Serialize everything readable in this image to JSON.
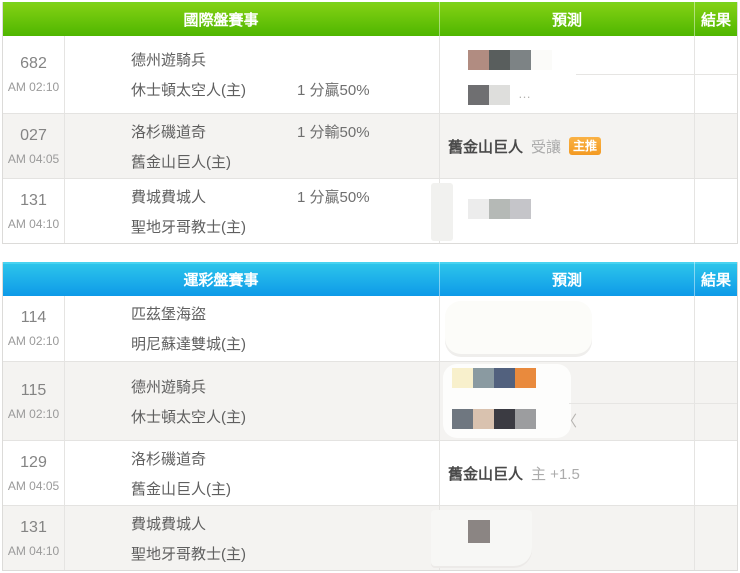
{
  "colors": {
    "green_top": "#85D215",
    "green_bottom": "#4FB600",
    "blue_top": "#2EC7EB",
    "blue_bottom": "#0E9AE8",
    "row_alt": "#F4F3F1",
    "badge_orange": "#F39A22"
  },
  "tables": [
    {
      "title": "國際盤賽事",
      "theme": "green",
      "header": {
        "event": "國際盤賽事",
        "prediction": "預測",
        "result": "結果"
      },
      "rows": [
        {
          "number": "682",
          "time": "AM 02:10",
          "away": "德州遊騎兵",
          "home": "休士頓太空人(主)",
          "odds": "1 分贏50%",
          "odds_line": "home",
          "prediction": {
            "kind": "censored",
            "mosaic": [
              [
                "#B18C81",
                "#595E5D",
                "#7D8385",
                "#FBFBF9"
              ],
              [
                "#6F6F71",
                "#DEDEDC"
              ]
            ],
            "suffix": "…"
          },
          "result": ""
        },
        {
          "number": "027",
          "time": "AM 04:05",
          "away": "洛杉磯道奇",
          "home": "舊金山巨人(主)",
          "odds": "1 分輸50%",
          "odds_line": "away",
          "prediction": {
            "kind": "pick",
            "team": "舊金山巨人",
            "note": "受讓",
            "badge": "主推"
          },
          "result": ""
        },
        {
          "number": "131",
          "time": "AM 04:10",
          "away": "費城費城人",
          "home": "聖地牙哥教士(主)",
          "odds": "1 分贏50%",
          "odds_line": "away",
          "prediction": {
            "kind": "censored",
            "mosaic": [
              [
                "#ECECEC",
                "#B5B9B6",
                "#C5C5C9"
              ]
            ]
          },
          "result": ""
        }
      ]
    },
    {
      "title": "運彩盤賽事",
      "theme": "blue",
      "header": {
        "event": "運彩盤賽事",
        "prediction": "預測",
        "result": "結果"
      },
      "rows": [
        {
          "number": "114",
          "time": "AM 02:10",
          "away": "匹茲堡海盜",
          "home": "明尼蘇達雙城(主)",
          "prediction": {
            "kind": "censored",
            "mosaic": []
          },
          "result": ""
        },
        {
          "number": "115",
          "time": "AM 02:10",
          "away": "德州遊騎兵",
          "home": "休士頓太空人(主)",
          "prediction": {
            "kind": "censored",
            "mosaic": [
              [
                "#F8F0CC",
                "#8A9AA1",
                "#52617E",
                "#E98A3D"
              ],
              [
                "#6F7780",
                "#D9C2AF",
                "#3B3B42",
                "#9C9D9F"
              ]
            ],
            "suffix": "〈"
          },
          "result": ""
        },
        {
          "number": "129",
          "time": "AM 04:05",
          "away": "洛杉磯道奇",
          "home": "舊金山巨人(主)",
          "prediction": {
            "kind": "pick",
            "team": "舊金山巨人",
            "note": "主 +1.5"
          },
          "result": ""
        },
        {
          "number": "131",
          "time": "AM 04:10",
          "away": "費城費城人",
          "home": "聖地牙哥教士(主)",
          "prediction": {
            "kind": "censored",
            "mosaic": [
              [
                "#8B8583"
              ]
            ]
          },
          "result": ""
        }
      ]
    }
  ]
}
